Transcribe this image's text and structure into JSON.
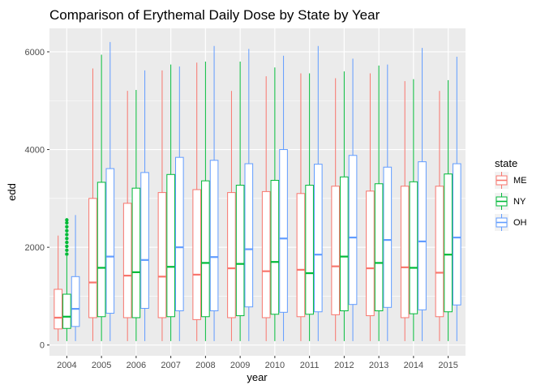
{
  "chart_data": {
    "type": "boxplot",
    "title": "Comparison of Erythemal Daily Dose by State by Year",
    "xlabel": "year",
    "ylabel": "edd",
    "categories": [
      "2004",
      "2005",
      "2006",
      "2007",
      "2008",
      "2009",
      "2010",
      "2011",
      "2012",
      "2013",
      "2014",
      "2015"
    ],
    "y_ticks": [
      0,
      2000,
      4000,
      6000
    ],
    "ylim": [
      -220,
      6480
    ],
    "grid": true,
    "legend": {
      "title": "state",
      "position": "right"
    },
    "series": [
      {
        "name": "ME",
        "color": "#F8766D",
        "boxes": [
          {
            "min": 80,
            "q1": 330,
            "median": 560,
            "q3": 1140,
            "max": 2240
          },
          {
            "min": 80,
            "q1": 560,
            "median": 1280,
            "q3": 3000,
            "max": 5660
          },
          {
            "min": 80,
            "q1": 560,
            "median": 1420,
            "q3": 2900,
            "max": 5200
          },
          {
            "min": 80,
            "q1": 560,
            "median": 1400,
            "q3": 3120,
            "max": 5620
          },
          {
            "min": 80,
            "q1": 520,
            "median": 1440,
            "q3": 3180,
            "max": 5780
          },
          {
            "min": 80,
            "q1": 560,
            "median": 1570,
            "q3": 3120,
            "max": 5200
          },
          {
            "min": 80,
            "q1": 560,
            "median": 1510,
            "q3": 3140,
            "max": 5500
          },
          {
            "min": 80,
            "q1": 580,
            "median": 1540,
            "q3": 3100,
            "max": 5560
          },
          {
            "min": 80,
            "q1": 620,
            "median": 1610,
            "q3": 3250,
            "max": 5460
          },
          {
            "min": 80,
            "q1": 600,
            "median": 1570,
            "q3": 3150,
            "max": 5560
          },
          {
            "min": 80,
            "q1": 560,
            "median": 1590,
            "q3": 3250,
            "max": 5400
          },
          {
            "min": 80,
            "q1": 580,
            "median": 1480,
            "q3": 3250,
            "max": 5200
          }
        ],
        "outliers": [
          [],
          [],
          [],
          [],
          [],
          [],
          [],
          [],
          [],
          [],
          [],
          []
        ]
      },
      {
        "name": "NY",
        "color": "#00BA38",
        "boxes": [
          {
            "min": 80,
            "q1": 340,
            "median": 580,
            "q3": 1040,
            "max": 1820
          },
          {
            "min": 80,
            "q1": 580,
            "median": 1580,
            "q3": 3330,
            "max": 5940
          },
          {
            "min": 80,
            "q1": 560,
            "median": 1490,
            "q3": 3210,
            "max": 5220
          },
          {
            "min": 80,
            "q1": 580,
            "median": 1600,
            "q3": 3490,
            "max": 5740
          },
          {
            "min": 80,
            "q1": 580,
            "median": 1680,
            "q3": 3360,
            "max": 5800
          },
          {
            "min": 80,
            "q1": 600,
            "median": 1660,
            "q3": 3270,
            "max": 5800
          },
          {
            "min": 80,
            "q1": 630,
            "median": 1700,
            "q3": 3370,
            "max": 5680
          },
          {
            "min": 80,
            "q1": 630,
            "median": 1470,
            "q3": 3270,
            "max": 5560
          },
          {
            "min": 80,
            "q1": 700,
            "median": 1810,
            "q3": 3440,
            "max": 5600
          },
          {
            "min": 80,
            "q1": 700,
            "median": 1680,
            "q3": 3300,
            "max": 5720
          },
          {
            "min": 80,
            "q1": 640,
            "median": 1580,
            "q3": 3340,
            "max": 5440
          },
          {
            "min": 80,
            "q1": 680,
            "median": 1850,
            "q3": 3500,
            "max": 5420
          }
        ],
        "outliers": [
          [
            1860,
            1940,
            2020,
            2100,
            2180,
            2260,
            2340,
            2420,
            2500,
            2560
          ],
          [],
          [],
          [],
          [],
          [],
          [],
          [],
          [],
          [],
          [],
          []
        ]
      },
      {
        "name": "OH",
        "color": "#619CFF",
        "boxes": [
          {
            "min": 80,
            "q1": 380,
            "median": 740,
            "q3": 1400,
            "max": 2660
          },
          {
            "min": 80,
            "q1": 650,
            "median": 1810,
            "q3": 3610,
            "max": 6200
          },
          {
            "min": 80,
            "q1": 750,
            "median": 1740,
            "q3": 3530,
            "max": 5620
          },
          {
            "min": 80,
            "q1": 700,
            "median": 2000,
            "q3": 3840,
            "max": 5700
          },
          {
            "min": 80,
            "q1": 700,
            "median": 1800,
            "q3": 3780,
            "max": 6120
          },
          {
            "min": 80,
            "q1": 780,
            "median": 1960,
            "q3": 3710,
            "max": 6060
          },
          {
            "min": 80,
            "q1": 670,
            "median": 2180,
            "q3": 4000,
            "max": 5920
          },
          {
            "min": 80,
            "q1": 680,
            "median": 1850,
            "q3": 3700,
            "max": 6120
          },
          {
            "min": 80,
            "q1": 830,
            "median": 2200,
            "q3": 3880,
            "max": 5860
          },
          {
            "min": 80,
            "q1": 770,
            "median": 2150,
            "q3": 3640,
            "max": 5740
          },
          {
            "min": 80,
            "q1": 720,
            "median": 2120,
            "q3": 3750,
            "max": 6080
          },
          {
            "min": 80,
            "q1": 820,
            "median": 2200,
            "q3": 3710,
            "max": 5900
          }
        ],
        "outliers": [
          [],
          [],
          [],
          [],
          [],
          [],
          [],
          [],
          [],
          [],
          [],
          []
        ]
      }
    ]
  }
}
